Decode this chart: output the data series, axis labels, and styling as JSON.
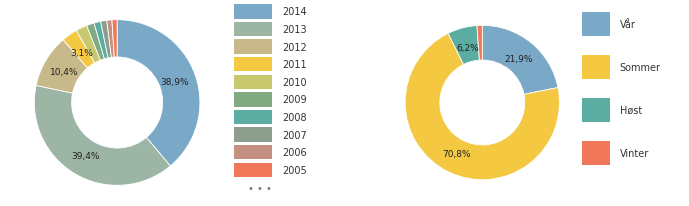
{
  "chart1": {
    "labels": [
      "2014",
      "2013",
      "2012",
      "2011",
      "2010",
      "2009",
      "2008",
      "2007",
      "2006",
      "2005"
    ],
    "values": [
      38.9,
      39.4,
      10.4,
      3.1,
      2.2,
      1.5,
      1.3,
      1.2,
      1.0,
      1.0
    ],
    "colors": [
      "#7aa8c7",
      "#9db5a5",
      "#c8b98a",
      "#f5c842",
      "#c8c86e",
      "#82aa82",
      "#5aada0",
      "#8e9e8e",
      "#c49080",
      "#f07858"
    ]
  },
  "chart2": {
    "labels": [
      "Vår",
      "Sommer",
      "Høst",
      "Vinter"
    ],
    "values": [
      21.9,
      70.8,
      6.2,
      1.1
    ],
    "colors": [
      "#7aa8c7",
      "#f5c842",
      "#5aada0",
      "#f07858"
    ]
  },
  "background_color": "#ffffff"
}
